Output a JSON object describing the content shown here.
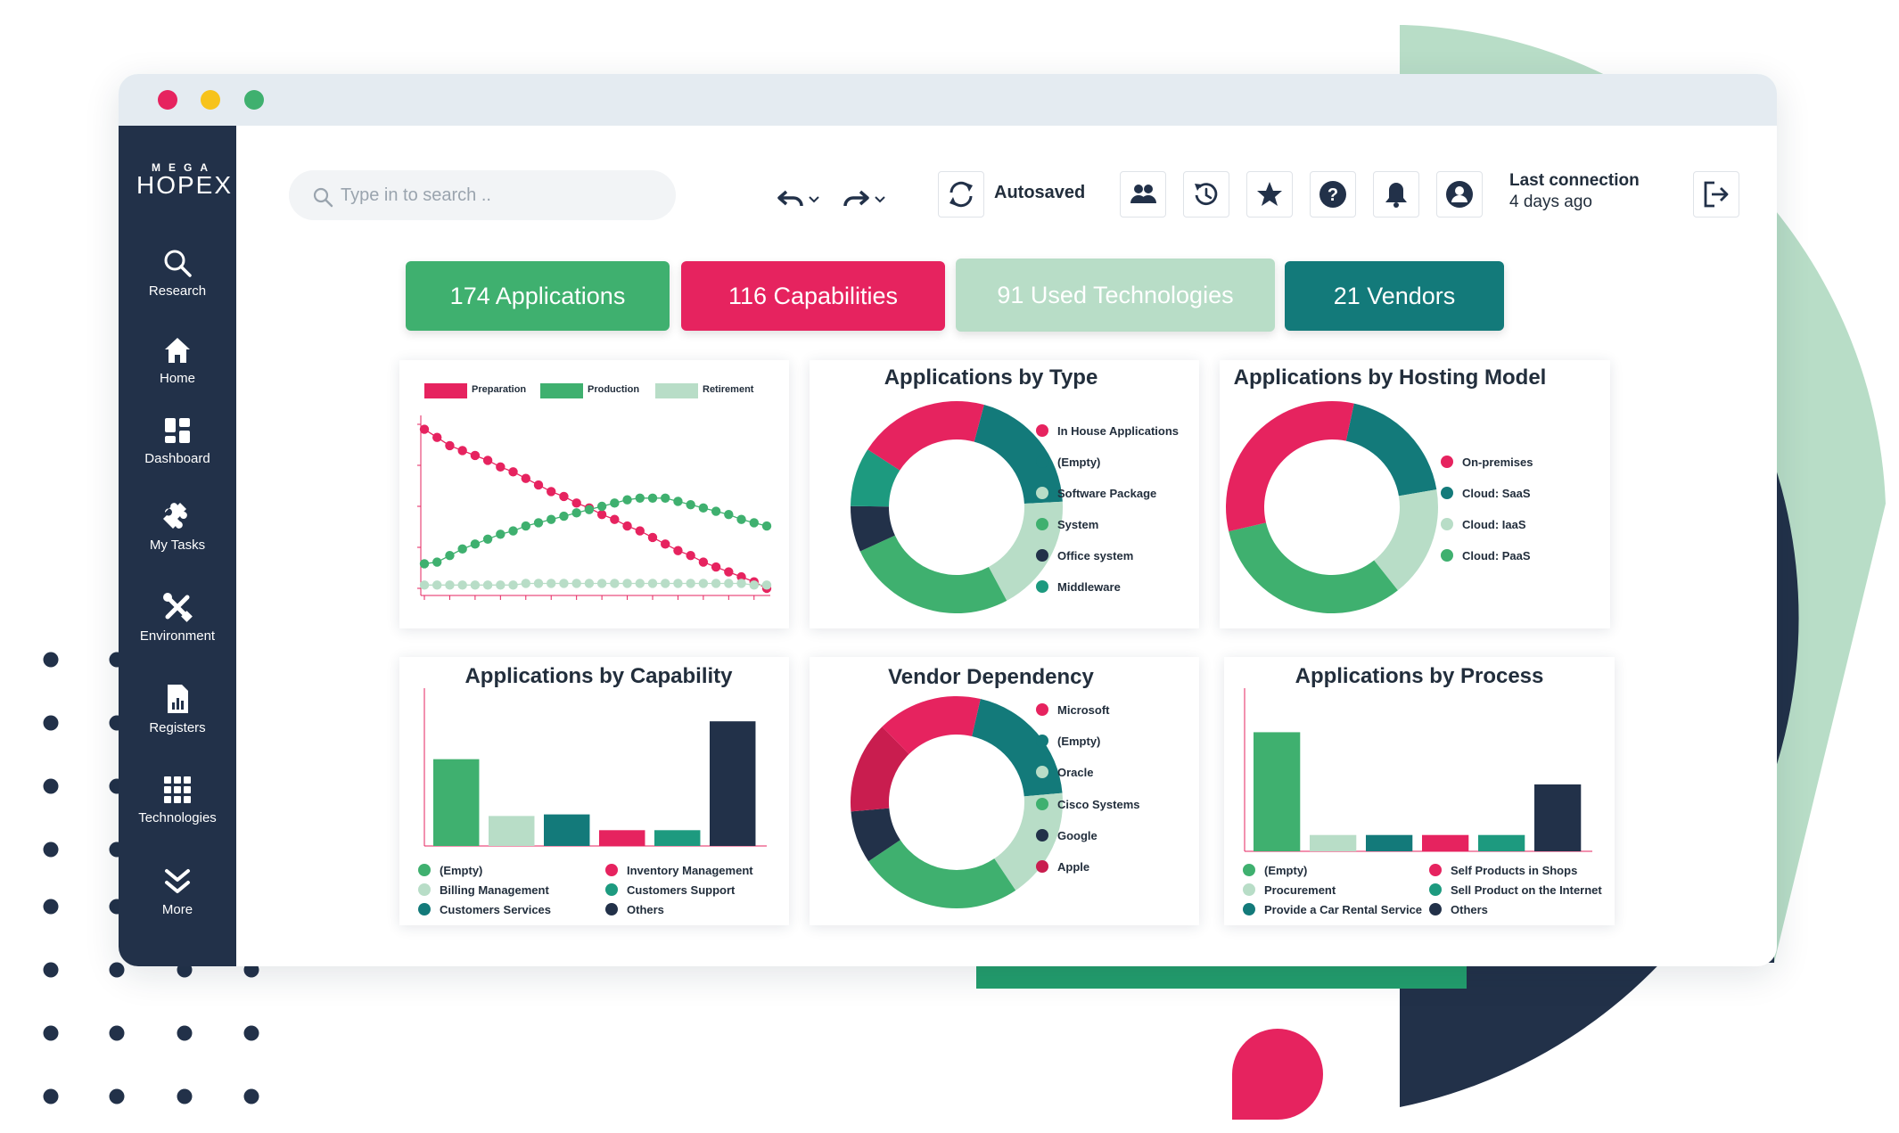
{
  "brand": {
    "line1": "MEGA",
    "line2": "HOPEX"
  },
  "colors": {
    "green": "#3fb06f",
    "pink": "#e6235f",
    "lightgreen": "#b8ddc7",
    "teal": "#137a7a",
    "navy": "#223149"
  },
  "sidebar": {
    "items": [
      {
        "label": "Research",
        "icon": "search-icon"
      },
      {
        "label": "Home",
        "icon": "home-icon"
      },
      {
        "label": "Dashboard",
        "icon": "dashboard-icon"
      },
      {
        "label": "My Tasks",
        "icon": "puzzle-icon"
      },
      {
        "label": "Environment",
        "icon": "tools-icon"
      },
      {
        "label": "Registers",
        "icon": "report-icon"
      },
      {
        "label": "Technologies",
        "icon": "grid-icon"
      },
      {
        "label": "More",
        "icon": "chevrons-down-icon"
      }
    ]
  },
  "search": {
    "placeholder": "Type in to search .."
  },
  "toolbar": {
    "autosave_label": "Autosaved",
    "last_connection_label": "Last connection",
    "last_connection_value": "4 days ago",
    "icons": [
      "users-icon",
      "history-icon",
      "star-icon",
      "help-icon",
      "bell-icon",
      "account-icon",
      "logout-icon",
      "undo-icon",
      "redo-icon",
      "refresh-icon"
    ]
  },
  "stats": [
    {
      "label": "174 Applications",
      "color": "#3fb06f"
    },
    {
      "label": "116 Capabilities",
      "color": "#e6235f"
    },
    {
      "label": "91 Used Technologies",
      "color": "#b8ddc7"
    },
    {
      "label": "21 Vendors",
      "color": "#137a7a"
    }
  ],
  "chart_data": [
    {
      "type": "line",
      "title": "",
      "grid": false,
      "legend_position": "top",
      "x": [
        1,
        2,
        3,
        4,
        5,
        6,
        7,
        8,
        9,
        10,
        11,
        12,
        13,
        14,
        15,
        16,
        17,
        18,
        19,
        20,
        21,
        22,
        23,
        24,
        25,
        26,
        27,
        28
      ],
      "ylim": [
        0,
        100
      ],
      "series": [
        {
          "name": "Preparation",
          "color": "#e6235f",
          "values": [
            97,
            92,
            87,
            84,
            81,
            78,
            74,
            71,
            67,
            63,
            59,
            56,
            52,
            49,
            45,
            42,
            38,
            35,
            31,
            27,
            23,
            20,
            16,
            13,
            10,
            7,
            4,
            0
          ]
        },
        {
          "name": "Production",
          "color": "#3fb06f",
          "values": [
            15,
            16,
            20,
            24,
            27,
            30,
            33,
            35,
            38,
            40,
            42,
            44,
            46,
            48,
            50,
            52,
            54,
            55,
            55,
            55,
            53,
            51,
            49,
            47,
            45,
            42,
            40,
            38
          ]
        },
        {
          "name": "Retirement",
          "color": "#b8ddc7",
          "values": [
            2,
            2,
            2,
            2,
            2,
            2,
            2,
            2,
            3,
            3,
            3,
            3,
            3,
            3,
            3,
            3,
            3,
            3,
            3,
            3,
            3,
            3,
            3,
            3,
            3,
            3,
            2,
            2
          ]
        }
      ]
    },
    {
      "type": "pie",
      "title": "Applications by Type",
      "legend_position": "right",
      "labels": [
        "In House Applications",
        "(Empty)",
        "Software Package",
        "System",
        "Office system",
        "Middleware"
      ],
      "colors": [
        "#e6235f",
        "#137a7a",
        "#b8ddc7",
        "#3fb06f",
        "#223149",
        "#1d9a7f"
      ],
      "values": [
        20,
        20,
        18,
        26,
        7,
        9
      ]
    },
    {
      "type": "pie",
      "title": "Applications by Hosting Model",
      "legend_position": "right",
      "labels": [
        "On-premises",
        "Cloud: SaaS",
        "Cloud: IaaS",
        "Cloud: PaaS"
      ],
      "colors": [
        "#e6235f",
        "#137a7a",
        "#b8ddc7",
        "#3fb06f"
      ],
      "values": [
        32,
        19,
        17,
        32
      ]
    },
    {
      "type": "bar",
      "title": "Applications by Capability",
      "legend_position": "bottom",
      "categories": [
        "(Empty)",
        "Billing Management",
        "Customers Services",
        "Inventory Management",
        "Customers Support",
        "Others"
      ],
      "colors": [
        "#3fb06f",
        "#b8ddc7",
        "#137a7a",
        "#e6235f",
        "#1d9a7f",
        "#223149"
      ],
      "values": [
        55,
        19,
        20,
        10,
        10,
        79
      ],
      "ylim": [
        0,
        100
      ]
    },
    {
      "type": "pie",
      "title": "Vendor Dependency",
      "legend_position": "right",
      "labels": [
        "Microsoft",
        "(Empty)",
        "Oracle",
        "Cisco Systems",
        "Google",
        "Apple"
      ],
      "colors": [
        "#e6235f",
        "#137a7a",
        "#b8ddc7",
        "#3fb06f",
        "#223149",
        "#c91d4f"
      ],
      "values": [
        16,
        20,
        17,
        25,
        8,
        14
      ]
    },
    {
      "type": "bar",
      "title": "Applications by Process",
      "legend_position": "bottom",
      "categories": [
        "(Empty)",
        "Procurement",
        "Provide a Car Rental Service",
        "Self Products in Shops",
        "Sell Product on the Internet",
        "Others"
      ],
      "colors": [
        "#3fb06f",
        "#b8ddc7",
        "#137a7a",
        "#e6235f",
        "#1d9a7f",
        "#223149"
      ],
      "values": [
        73,
        10,
        10,
        10,
        10,
        41
      ],
      "ylim": [
        0,
        100
      ]
    }
  ]
}
